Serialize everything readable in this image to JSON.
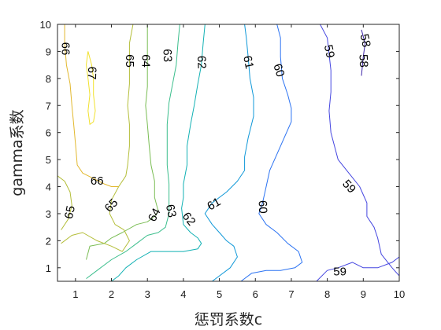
{
  "chart_data": {
    "type": "contour",
    "xlabel": "惩罚系数c",
    "ylabel": "gamma系数",
    "xlim": [
      0.5,
      10
    ],
    "ylim": [
      0.5,
      10
    ],
    "x_ticks": [
      "1",
      "2",
      "3",
      "4",
      "5",
      "6",
      "7",
      "8",
      "9",
      "10"
    ],
    "y_ticks": [
      "1",
      "2",
      "3",
      "4",
      "5",
      "6",
      "7",
      "8",
      "9",
      "10"
    ],
    "colormap": "parula",
    "grid": false,
    "levels": [
      {
        "value": 58,
        "color": "#3e26a8",
        "label": "58",
        "lines": [
          [
            [
              8.95,
              9.8
            ],
            [
              9.05,
              9.3
            ],
            [
              9.0,
              8.8
            ],
            [
              8.95,
              8.1
            ]
          ]
        ]
      },
      {
        "value": 59,
        "color": "#4546e0",
        "label": "59",
        "lines": [
          [
            [
              7.8,
              10.0
            ],
            [
              8.0,
              9.5
            ],
            [
              8.05,
              8.9
            ],
            [
              8.1,
              8.3
            ],
            [
              8.1,
              7.5
            ],
            [
              8.05,
              6.8
            ],
            [
              8.1,
              6.0
            ],
            [
              8.3,
              5.0
            ],
            [
              8.6,
              4.5
            ],
            [
              8.9,
              4.0
            ],
            [
              9.1,
              3.4
            ],
            [
              9.1,
              2.9
            ],
            [
              9.3,
              2.5
            ],
            [
              9.4,
              2.1
            ],
            [
              9.5,
              1.5
            ],
            [
              9.8,
              1.0
            ],
            [
              10.0,
              0.7
            ]
          ],
          [
            [
              7.7,
              0.5
            ],
            [
              8.0,
              0.9
            ],
            [
              8.3,
              1.0
            ],
            [
              8.7,
              1.2
            ],
            [
              9.0,
              1.0
            ],
            [
              9.4,
              1.0
            ],
            [
              9.8,
              1.2
            ],
            [
              10.0,
              1.4
            ]
          ]
        ]
      },
      {
        "value": 60,
        "color": "#2c73f2",
        "label": "60",
        "lines": [
          [
            [
              6.6,
              10.0
            ],
            [
              6.7,
              9.5
            ],
            [
              6.7,
              8.8
            ],
            [
              6.75,
              8.0
            ],
            [
              6.9,
              7.4
            ],
            [
              7.0,
              6.9
            ],
            [
              7.0,
              6.4
            ],
            [
              6.8,
              5.8
            ],
            [
              6.6,
              5.2
            ],
            [
              6.4,
              4.6
            ],
            [
              6.3,
              4.0
            ],
            [
              6.2,
              3.4
            ],
            [
              6.1,
              3.0
            ],
            [
              6.3,
              2.6
            ],
            [
              6.6,
              2.3
            ],
            [
              6.9,
              1.9
            ],
            [
              7.2,
              1.6
            ],
            [
              7.3,
              1.2
            ],
            [
              7.1,
              1.0
            ],
            [
              6.7,
              0.9
            ],
            [
              6.3,
              0.9
            ],
            [
              5.9,
              0.8
            ],
            [
              5.6,
              0.5
            ]
          ]
        ]
      },
      {
        "value": 61,
        "color": "#0f98d8",
        "label": "61",
        "lines": [
          [
            [
              5.7,
              10.0
            ],
            [
              5.75,
              9.5
            ],
            [
              5.8,
              8.8
            ],
            [
              5.85,
              8.0
            ],
            [
              5.95,
              7.3
            ],
            [
              5.95,
              6.6
            ],
            [
              5.8,
              5.8
            ],
            [
              5.7,
              5.1
            ],
            [
              5.7,
              4.6
            ],
            [
              5.5,
              4.2
            ],
            [
              5.2,
              3.8
            ],
            [
              4.8,
              3.4
            ],
            [
              4.6,
              3.0
            ],
            [
              4.8,
              2.6
            ],
            [
              5.0,
              2.3
            ],
            [
              5.2,
              2.0
            ],
            [
              5.4,
              1.8
            ],
            [
              5.5,
              1.4
            ],
            [
              5.3,
              1.0
            ],
            [
              5.0,
              0.7
            ],
            [
              4.8,
              0.5
            ]
          ]
        ]
      },
      {
        "value": 62,
        "color": "#12b1b4",
        "label": "62",
        "lines": [
          [
            [
              4.6,
              10.0
            ],
            [
              4.55,
              9.3
            ],
            [
              4.5,
              8.5
            ],
            [
              4.4,
              7.8
            ],
            [
              4.3,
              7.0
            ],
            [
              4.2,
              6.3
            ],
            [
              4.1,
              5.5
            ],
            [
              4.1,
              4.8
            ],
            [
              4.0,
              4.1
            ],
            [
              4.0,
              3.6
            ],
            [
              3.95,
              3.2
            ],
            [
              4.0,
              2.6
            ],
            [
              4.2,
              2.3
            ],
            [
              4.4,
              2.1
            ],
            [
              4.5,
              1.9
            ],
            [
              4.4,
              1.7
            ],
            [
              4.0,
              1.6
            ],
            [
              3.6,
              1.6
            ],
            [
              3.1,
              1.6
            ],
            [
              2.7,
              1.3
            ],
            [
              2.4,
              1.0
            ],
            [
              2.2,
              0.7
            ],
            [
              2.0,
              0.5
            ]
          ]
        ]
      },
      {
        "value": 63,
        "color": "#3bbe8c",
        "label": "63",
        "lines": [
          [
            [
              3.9,
              10.0
            ],
            [
              3.85,
              9.3
            ],
            [
              3.8,
              8.5
            ],
            [
              3.7,
              7.8
            ],
            [
              3.6,
              7.1
            ],
            [
              3.55,
              6.3
            ],
            [
              3.55,
              5.5
            ],
            [
              3.55,
              4.8
            ],
            [
              3.6,
              4.1
            ],
            [
              3.6,
              3.4
            ],
            [
              3.6,
              3.0
            ],
            [
              3.5,
              2.5
            ],
            [
              3.3,
              2.3
            ],
            [
              3.0,
              2.2
            ],
            [
              2.7,
              1.9
            ],
            [
              2.4,
              1.6
            ],
            [
              2.0,
              1.3
            ],
            [
              1.6,
              0.9
            ],
            [
              1.3,
              0.6
            ]
          ]
        ]
      },
      {
        "value": 64,
        "color": "#7abd54",
        "label": "64",
        "lines": [
          [
            [
              3.0,
              10.0
            ],
            [
              3.0,
              9.3
            ],
            [
              3.0,
              8.5
            ],
            [
              3.0,
              7.7
            ],
            [
              2.95,
              7.0
            ],
            [
              3.0,
              6.3
            ],
            [
              3.05,
              5.5
            ],
            [
              3.1,
              4.8
            ],
            [
              3.2,
              4.2
            ],
            [
              3.2,
              3.6
            ],
            [
              3.3,
              3.1
            ],
            [
              3.2,
              2.9
            ],
            [
              3.0,
              2.7
            ],
            [
              2.7,
              2.6
            ],
            [
              2.3,
              2.3
            ],
            [
              2.0,
              2.1
            ],
            [
              1.8,
              1.9
            ],
            [
              1.4,
              1.8
            ],
            [
              1.3,
              1.3
            ]
          ]
        ]
      },
      {
        "value": 65,
        "color": "#b4be39",
        "label": "65",
        "lines": [
          [
            [
              2.6,
              10.0
            ],
            [
              2.5,
              9.3
            ],
            [
              2.5,
              8.5
            ],
            [
              2.5,
              7.8
            ],
            [
              2.45,
              7.0
            ],
            [
              2.5,
              6.3
            ],
            [
              2.5,
              5.5
            ],
            [
              2.45,
              4.8
            ],
            [
              2.4,
              4.4
            ],
            [
              2.2,
              4.0
            ],
            [
              2.0,
              3.5
            ],
            [
              1.95,
              3.0
            ],
            [
              2.1,
              2.6
            ],
            [
              2.35,
              2.4
            ],
            [
              2.5,
              2.0
            ],
            [
              2.3,
              1.6
            ],
            [
              2.0,
              1.8
            ],
            [
              1.6,
              2.0
            ],
            [
              1.2,
              2.3
            ],
            [
              0.9,
              2.2
            ],
            [
              0.6,
              1.9
            ]
          ],
          [
            [
              0.5,
              4.4
            ],
            [
              0.7,
              4.2
            ],
            [
              0.85,
              3.8
            ],
            [
              0.9,
              3.3
            ],
            [
              0.8,
              2.8
            ],
            [
              0.6,
              2.4
            ]
          ]
        ]
      },
      {
        "value": 66,
        "color": "#e2b82e",
        "label": "66",
        "lines": [
          [
            [
              0.7,
              10.0
            ],
            [
              0.7,
              9.3
            ],
            [
              0.75,
              8.5
            ],
            [
              0.85,
              7.8
            ],
            [
              0.9,
              7.0
            ],
            [
              0.95,
              6.3
            ],
            [
              1.0,
              5.6
            ],
            [
              1.05,
              4.8
            ],
            [
              1.2,
              4.5
            ],
            [
              1.5,
              4.3
            ],
            [
              1.8,
              4.1
            ],
            [
              2.0,
              4.0
            ],
            [
              2.2,
              4.0
            ]
          ]
        ]
      },
      {
        "value": 67,
        "color": "#f1e12d",
        "label": "67",
        "lines": [
          [
            [
              1.35,
              9.0
            ],
            [
              1.45,
              8.5
            ],
            [
              1.5,
              8.0
            ],
            [
              1.5,
              7.4
            ],
            [
              1.55,
              6.8
            ],
            [
              1.5,
              6.4
            ],
            [
              1.4,
              6.3
            ],
            [
              1.35,
              6.8
            ],
            [
              1.4,
              7.4
            ],
            [
              1.35,
              8.0
            ],
            [
              1.3,
              8.5
            ],
            [
              1.35,
              9.0
            ]
          ]
        ]
      }
    ],
    "contour_labels": [
      {
        "text": "66",
        "x": 0.72,
        "y": 9.1,
        "angle": 90
      },
      {
        "text": "67",
        "x": 1.45,
        "y": 8.2,
        "angle": 92
      },
      {
        "text": "65",
        "x": 2.5,
        "y": 8.65,
        "angle": 90
      },
      {
        "text": "64",
        "x": 2.95,
        "y": 8.65,
        "angle": 90
      },
      {
        "text": "63",
        "x": 3.55,
        "y": 8.85,
        "angle": 88
      },
      {
        "text": "62",
        "x": 4.5,
        "y": 8.6,
        "angle": 88
      },
      {
        "text": "61",
        "x": 5.8,
        "y": 8.6,
        "angle": 78
      },
      {
        "text": "60",
        "x": 6.65,
        "y": 8.3,
        "angle": 72
      },
      {
        "text": "59",
        "x": 8.05,
        "y": 9.0,
        "angle": 78
      },
      {
        "text": "58",
        "x": 9.05,
        "y": 9.4,
        "angle": 78
      },
      {
        "text": "58",
        "x": 9.0,
        "y": 8.65,
        "angle": 88
      },
      {
        "text": "66",
        "x": 1.6,
        "y": 4.2,
        "angle": 0
      },
      {
        "text": "65",
        "x": 0.85,
        "y": 3.05,
        "angle": -78
      },
      {
        "text": "65",
        "x": 2.0,
        "y": 3.3,
        "angle": -48
      },
      {
        "text": "64",
        "x": 3.2,
        "y": 2.95,
        "angle": -62
      },
      {
        "text": "63",
        "x": 3.65,
        "y": 3.1,
        "angle": 78
      },
      {
        "text": "62",
        "x": 4.15,
        "y": 2.8,
        "angle": 52
      },
      {
        "text": "61",
        "x": 4.85,
        "y": 3.35,
        "angle": -30
      },
      {
        "text": "60",
        "x": 6.2,
        "y": 3.25,
        "angle": 88
      },
      {
        "text": "59",
        "x": 8.6,
        "y": 4.0,
        "angle": 48
      },
      {
        "text": "59",
        "x": 8.35,
        "y": 0.85,
        "angle": 0
      }
    ]
  }
}
